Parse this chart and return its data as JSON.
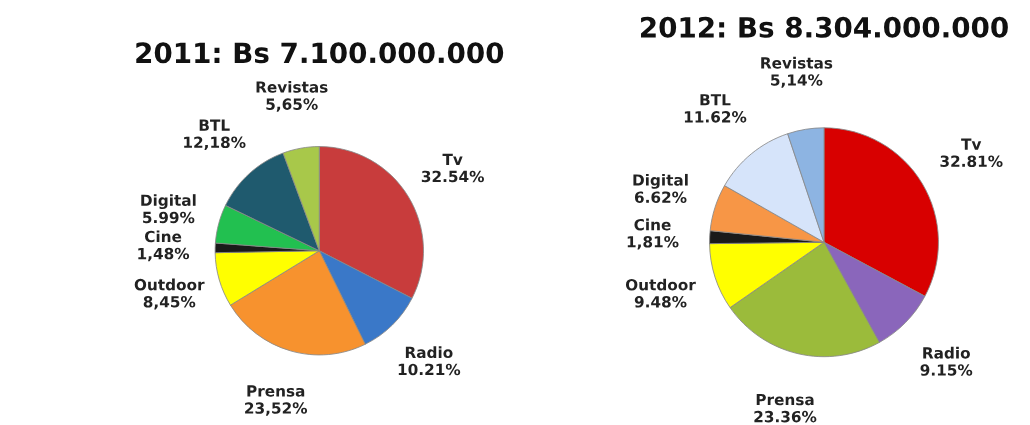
{
  "chart_data": [
    {
      "type": "pie",
      "title": "2011: Bs 7.100.000.000",
      "categories": [
        "Tv",
        "Radio",
        "Prensa",
        "Outdoor",
        "Cine",
        "Digital",
        "BTL",
        "Revistas"
      ],
      "values": [
        32.54,
        10.21,
        23.52,
        8.45,
        1.48,
        5.99,
        12.18,
        5.65
      ],
      "value_labels": [
        "32.54%",
        "10.21%",
        "23,52%",
        "8,45%",
        "1,48%",
        "5.99%",
        "12,18%",
        "5,65%"
      ],
      "colors": [
        "#c83c3c",
        "#3a78c8",
        "#f7922e",
        "#ffff00",
        "#1a1a1a",
        "#22c050",
        "#1f5a6e",
        "#a8c84a"
      ]
    },
    {
      "type": "pie",
      "title": "2012: Bs 8.304.000.000",
      "categories": [
        "Tv",
        "Radio",
        "Prensa",
        "Outdoor",
        "Cine",
        "Digital",
        "BTL",
        "Revistas"
      ],
      "values": [
        32.81,
        9.15,
        23.36,
        9.48,
        1.81,
        6.62,
        11.62,
        5.14
      ],
      "value_labels": [
        "32.81%",
        "9.15%",
        "23.36%",
        "9.48%",
        "1,81%",
        "6.62%",
        "11.62%",
        "5,14%"
      ],
      "colors": [
        "#d80000",
        "#8a66bb",
        "#9bbb3b",
        "#ffff00",
        "#1a1a1a",
        "#f79646",
        "#d6e4fa",
        "#8db4e2"
      ]
    }
  ]
}
